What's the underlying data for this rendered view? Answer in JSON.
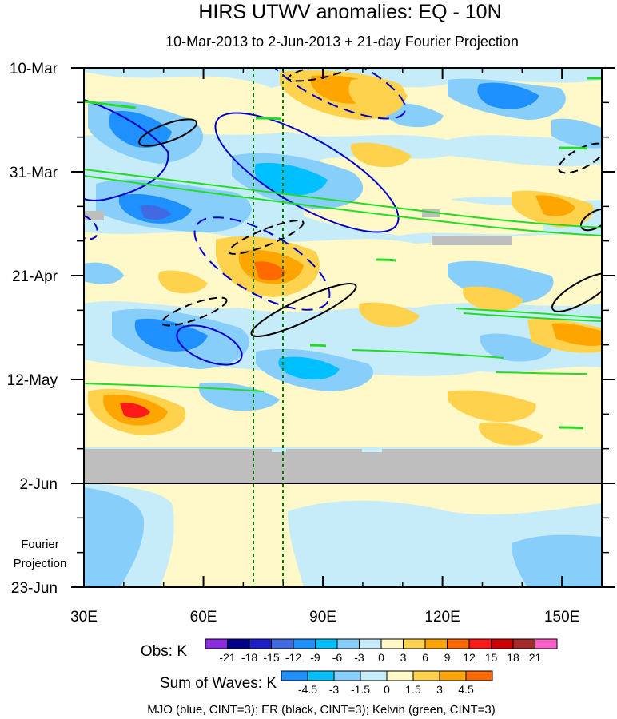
{
  "chart_data": {
    "type": "heatmap",
    "title": "HIRS UTWV anomalies: EQ - 10N",
    "subtitle": "10-Mar-2013 to 2-Jun-2013 + 21-day Fourier Projection",
    "x_axis": {
      "range": [
        30,
        160
      ],
      "ticks": [
        30,
        60,
        90,
        120,
        150
      ],
      "tick_labels": [
        "30E",
        "60E",
        "90E",
        "120E",
        "150E"
      ],
      "minor_tick_step": 10
    },
    "y_axis": {
      "range_days": [
        0,
        105
      ],
      "ticks_days": [
        0,
        21,
        42,
        63,
        84,
        105
      ],
      "tick_labels": [
        "10-Mar",
        "31-Mar",
        "21-Apr",
        "12-May",
        "2-Jun",
        "23-Jun"
      ],
      "minor_tick_step_days": 7,
      "direction": "down"
    },
    "projection_label": [
      "Fourier",
      "Projection"
    ],
    "vertical_reference_lines_lon": [
      72.5,
      80
    ],
    "obs_legend": {
      "label": "Obs: K",
      "levels": [
        "-21",
        "-18",
        "-15",
        "-12",
        "-9",
        "-6",
        "-3",
        "0",
        "3",
        "6",
        "9",
        "12",
        "15",
        "18",
        "21"
      ],
      "colors": [
        "#8a2be2",
        "#00008b",
        "#1f1fc8",
        "#4169e1",
        "#1e90ff",
        "#00bfff",
        "#87cefa",
        "#c6ecfa",
        "#fff8c8",
        "#ffd24d",
        "#ffa500",
        "#ff6a00",
        "#ff1a1a",
        "#cc0000",
        "#a52a2a",
        "#ff5fc8"
      ]
    },
    "waves_legend": {
      "label": "Sum of Waves: K",
      "levels": [
        "-4.5",
        "-3",
        "-1.5",
        "0",
        "1.5",
        "3",
        "4.5"
      ],
      "colors": [
        "#1e90ff",
        "#00bfff",
        "#87cefa",
        "#c6ecfa",
        "#fff8c8",
        "#ffd24d",
        "#ffa500",
        "#ff6a00"
      ]
    },
    "footer_note": "MJO (blue, CINT=3); ER (black, CINT=3); Kelvin (green, CINT=3)",
    "contour_colors": {
      "mjo": "#0000cc",
      "er": "#000000",
      "kelvin": "#22dd22",
      "missing": "#bebebe"
    }
  }
}
